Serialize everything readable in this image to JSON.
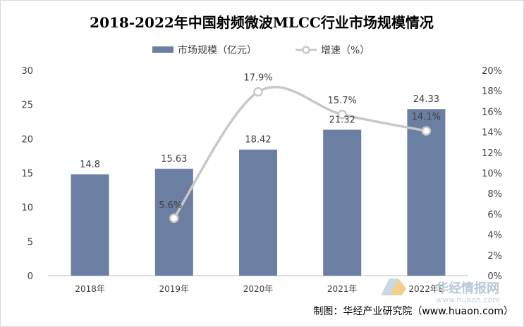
{
  "chart_data": {
    "type": "bar",
    "title": "2018-2022年中国射频微波MLCC行业市场规模情况",
    "categories": [
      "2018年",
      "2019年",
      "2020年",
      "2021年",
      "2022年E"
    ],
    "series": [
      {
        "name": "市场规模（亿元）",
        "type": "bar",
        "axis": "left",
        "values": [
          14.8,
          15.63,
          18.42,
          21.32,
          24.33
        ],
        "labels": [
          "14.8",
          "15.63",
          "18.42",
          "21.32",
          "24.33"
        ]
      },
      {
        "name": "增速（%）",
        "type": "line",
        "axis": "right",
        "x": [
          "2019年",
          "2020年",
          "2021年",
          "2022年E"
        ],
        "values": [
          5.6,
          17.9,
          15.7,
          14.1
        ],
        "labels": [
          "5.6%",
          "17.9%",
          "15.7%",
          "14.1%"
        ]
      }
    ],
    "y_left": {
      "min": 0,
      "max": 30,
      "ticks": [
        "0",
        "5",
        "10",
        "15",
        "20",
        "25",
        "30"
      ]
    },
    "y_right": {
      "min": 0,
      "max": 20,
      "ticks": [
        "0%",
        "2%",
        "4%",
        "6%",
        "8%",
        "10%",
        "12%",
        "14%",
        "16%",
        "18%",
        "20%"
      ]
    },
    "grid": false,
    "legend": "top-center",
    "colors": {
      "bar": "#6b7fa3",
      "line": "#c8c8c8",
      "marker_fill": "#ffffff"
    }
  },
  "source": "制图：华经产业研究院（www.huaon.com）",
  "watermark": {
    "text": "华经情报网",
    "url": "www.huaon.com"
  }
}
